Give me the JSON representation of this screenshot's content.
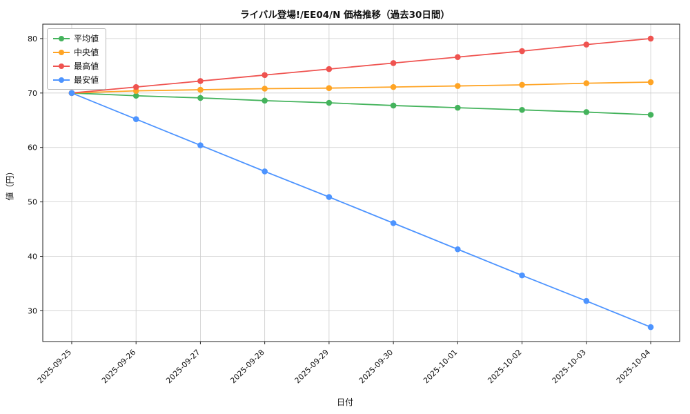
{
  "figure": {
    "title": "ライバル登場!/EE04/N 価格推移（過去30日間）",
    "xlabel": "日付",
    "ylabel": "値（円）"
  },
  "chart_data": {
    "type": "line",
    "title": "ライバル登場!/EE04/N 価格推移（過去30日間）",
    "xlabel": "日付",
    "ylabel": "値（円）",
    "categories": [
      "2025-09-25",
      "2025-09-26",
      "2025-09-27",
      "2025-09-28",
      "2025-09-29",
      "2025-09-30",
      "2025-10-01",
      "2025-10-02",
      "2025-10-03",
      "2025-10-04"
    ],
    "series": [
      {
        "name": "平均値",
        "color": "#44b35c",
        "values": [
          70.0,
          69.5,
          69.1,
          68.6,
          68.2,
          67.7,
          67.3,
          66.9,
          66.5,
          66.0
        ]
      },
      {
        "name": "中央値",
        "color": "#ffa424",
        "values": [
          70.0,
          70.4,
          70.6,
          70.8,
          70.9,
          71.1,
          71.3,
          71.5,
          71.8,
          72.0
        ]
      },
      {
        "name": "最高値",
        "color": "#ef5350",
        "values": [
          70.0,
          71.1,
          72.2,
          73.3,
          74.4,
          75.5,
          76.6,
          77.7,
          78.9,
          80.0
        ]
      },
      {
        "name": "最安値",
        "color": "#4d94ff",
        "values": [
          70.0,
          65.2,
          60.4,
          55.6,
          50.9,
          46.1,
          41.3,
          36.5,
          31.8,
          27.0
        ]
      }
    ],
    "ylim": [
      24.35,
      82.65
    ],
    "yticks": [
      30,
      40,
      50,
      60,
      70,
      80
    ],
    "grid": true,
    "legend_position": "upper left",
    "grid_color": "#cccccc",
    "axis_color": "#222222"
  }
}
